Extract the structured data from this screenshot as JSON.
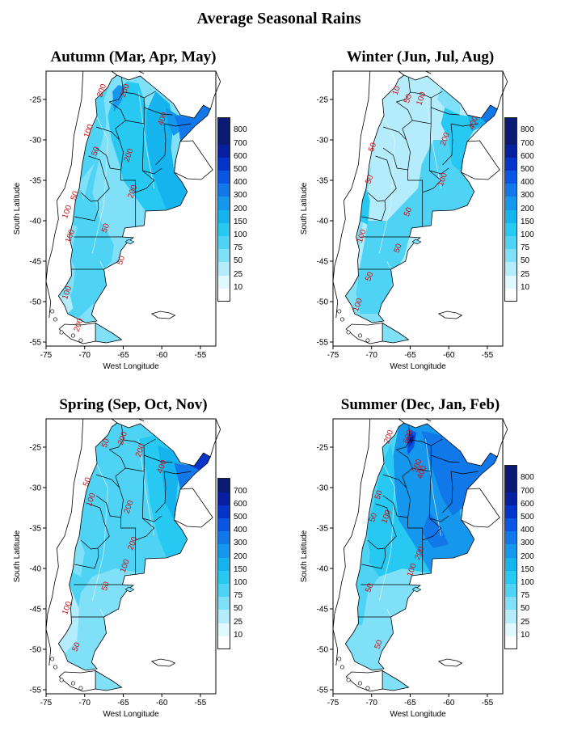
{
  "title": "Average Seasonal Rains",
  "axes": {
    "xlabel": "West Longitude",
    "ylabel": "South Latitude",
    "xticks": [
      "-75",
      "-70",
      "-65",
      "-60",
      "-55"
    ],
    "yticks": [
      "-25",
      "-30",
      "-35",
      "-40",
      "-45",
      "-50",
      "-55"
    ]
  },
  "panels": [
    {
      "id": "autumn",
      "title": "Autumn (Mar, Apr, May)",
      "legend": [
        "10",
        "25",
        "50",
        "75",
        "100",
        "150",
        "200",
        "300",
        "400",
        "500",
        "600",
        "700",
        "800"
      ],
      "contours": [
        "200",
        "200",
        "100",
        "50",
        "50",
        "200",
        "200",
        "400",
        "100",
        "100",
        "50",
        "50",
        "100",
        "200"
      ]
    },
    {
      "id": "winter",
      "title": "Winter (Jun, Jul, Aug)",
      "legend": [
        "10",
        "25",
        "50",
        "75",
        "100",
        "150",
        "200",
        "300",
        "400",
        "500",
        "600",
        "700",
        "800"
      ],
      "contours": [
        "10",
        "50",
        "100",
        "50",
        "50",
        "200",
        "400",
        "100",
        "50",
        "100",
        "50",
        "50",
        "100"
      ]
    },
    {
      "id": "spring",
      "title": "Spring (Sep, Oct, Nov)",
      "legend": [
        "10",
        "25",
        "50",
        "75",
        "100",
        "150",
        "200",
        "300",
        "400",
        "500",
        "600",
        "700"
      ],
      "contours": [
        "50",
        "200",
        "50",
        "100",
        "200",
        "400",
        "200",
        "200",
        "100",
        "50",
        "100",
        "50"
      ]
    },
    {
      "id": "summer",
      "title": "Summer (Dec, Jan, Feb)",
      "legend": [
        "10",
        "25",
        "50",
        "75",
        "100",
        "150",
        "200",
        "300",
        "400",
        "500",
        "600",
        "700",
        "800"
      ],
      "contours": [
        "200",
        "50",
        "50",
        "100",
        "300",
        "600",
        "400",
        "200",
        "100",
        "50",
        "50"
      ]
    }
  ],
  "colors": {
    "scale": [
      "#ffffff",
      "#e0f8ff",
      "#b4ecfb",
      "#7fe0f8",
      "#4ed3f4",
      "#27c8f1",
      "#16b4ee",
      "#1497ec",
      "#1078e8",
      "#0a56e2",
      "#0534c8",
      "#061fa0",
      "#0b1a74"
    ]
  }
}
